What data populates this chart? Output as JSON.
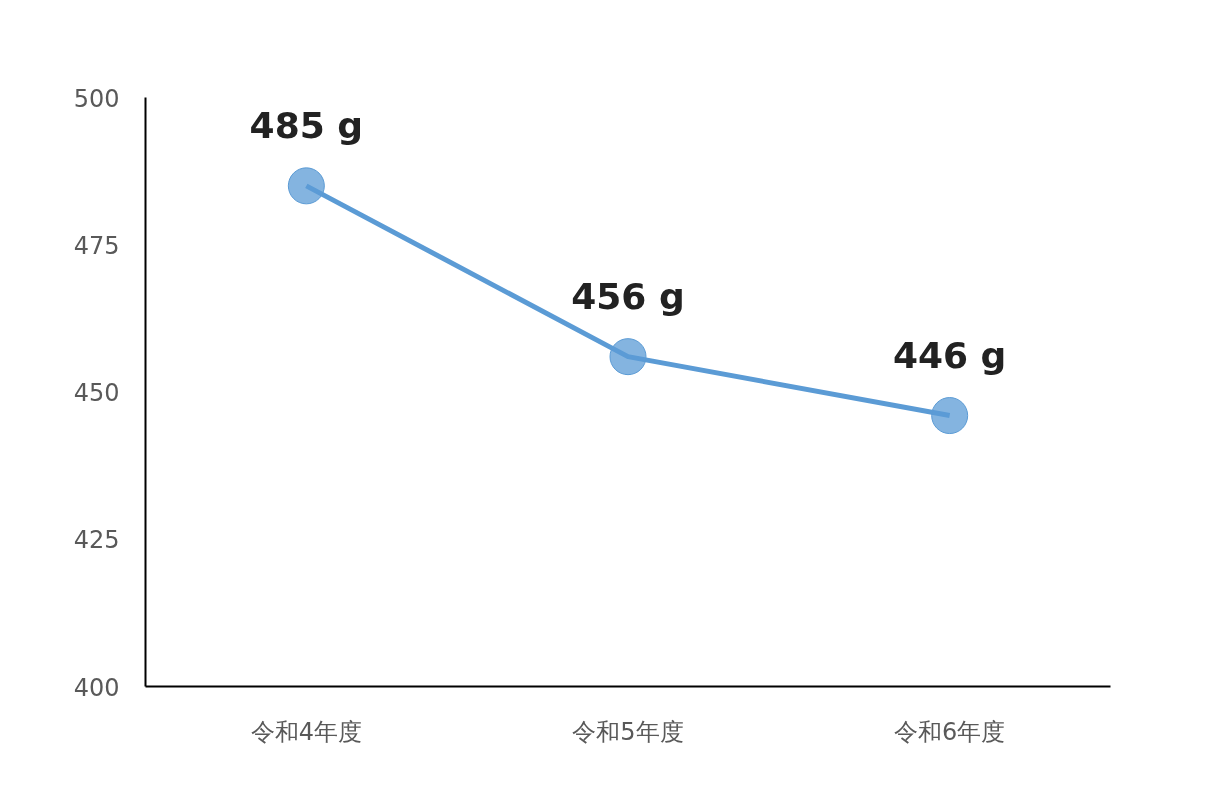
{
  "chart_data": {
    "type": "line",
    "categories": [
      "令和4年度",
      "令和5年度",
      "令和6年度"
    ],
    "series": [
      {
        "color": "#5b9bd5",
        "values": [
          485,
          456,
          446
        ],
        "value_labels": [
          "485 g",
          "456 g",
          "446 g"
        ]
      }
    ],
    "ylim": [
      400,
      500
    ],
    "yticks": [
      400,
      425,
      450,
      475,
      500
    ],
    "grid": false,
    "marker": "circle",
    "line_style": "solid"
  }
}
